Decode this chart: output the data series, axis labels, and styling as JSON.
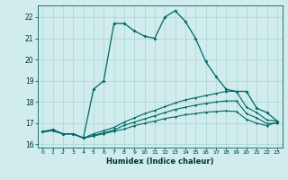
{
  "background_color": "#d0ecec",
  "grid_color": "#aad4d4",
  "line_color": "#006666",
  "xlabel": "Humidex (Indice chaleur)",
  "xlim": [
    -0.5,
    23.5
  ],
  "ylim": [
    15.85,
    22.55
  ],
  "yticks": [
    16,
    17,
    18,
    19,
    20,
    21,
    22
  ],
  "xticks": [
    0,
    1,
    2,
    3,
    4,
    5,
    6,
    7,
    8,
    9,
    10,
    11,
    12,
    13,
    14,
    15,
    16,
    17,
    18,
    19,
    20,
    21,
    22,
    23
  ],
  "line1_x": [
    0,
    1,
    2,
    3,
    4,
    5,
    6,
    7,
    8,
    9,
    10,
    11,
    12,
    13,
    14,
    15,
    16,
    17,
    18,
    19,
    20,
    21,
    22,
    23
  ],
  "line1_y": [
    16.6,
    16.7,
    16.5,
    16.5,
    16.3,
    18.6,
    19.0,
    21.7,
    21.7,
    21.35,
    21.1,
    21.0,
    22.0,
    22.3,
    21.8,
    21.0,
    19.9,
    19.2,
    18.6,
    18.5,
    18.5,
    17.7,
    17.5,
    17.1
  ],
  "line2_x": [
    0,
    1,
    2,
    3,
    4,
    5,
    6,
    7,
    8,
    9,
    10,
    11,
    12,
    13,
    14,
    15,
    16,
    17,
    18,
    19,
    20,
    21,
    22,
    23
  ],
  "line2_y": [
    16.6,
    16.65,
    16.5,
    16.5,
    16.3,
    16.5,
    16.65,
    16.8,
    17.05,
    17.25,
    17.45,
    17.6,
    17.78,
    17.95,
    18.1,
    18.2,
    18.3,
    18.4,
    18.5,
    18.5,
    17.75,
    17.5,
    17.15,
    17.1
  ],
  "line3_x": [
    0,
    1,
    2,
    3,
    4,
    5,
    6,
    7,
    8,
    9,
    10,
    11,
    12,
    13,
    14,
    15,
    16,
    17,
    18,
    19,
    20,
    21,
    22,
    23
  ],
  "line3_y": [
    16.6,
    16.65,
    16.5,
    16.5,
    16.3,
    16.42,
    16.55,
    16.68,
    16.9,
    17.05,
    17.2,
    17.35,
    17.5,
    17.65,
    17.75,
    17.85,
    17.93,
    18.0,
    18.05,
    18.05,
    17.45,
    17.25,
    16.98,
    17.0
  ],
  "line4_x": [
    0,
    1,
    2,
    3,
    4,
    5,
    6,
    7,
    8,
    9,
    10,
    11,
    12,
    13,
    14,
    15,
    16,
    17,
    18,
    19,
    20,
    21,
    22,
    23
  ],
  "line4_y": [
    16.6,
    16.65,
    16.5,
    16.5,
    16.3,
    16.4,
    16.5,
    16.62,
    16.72,
    16.88,
    17.0,
    17.1,
    17.22,
    17.3,
    17.4,
    17.45,
    17.52,
    17.55,
    17.58,
    17.55,
    17.18,
    17.0,
    16.88,
    17.05
  ]
}
